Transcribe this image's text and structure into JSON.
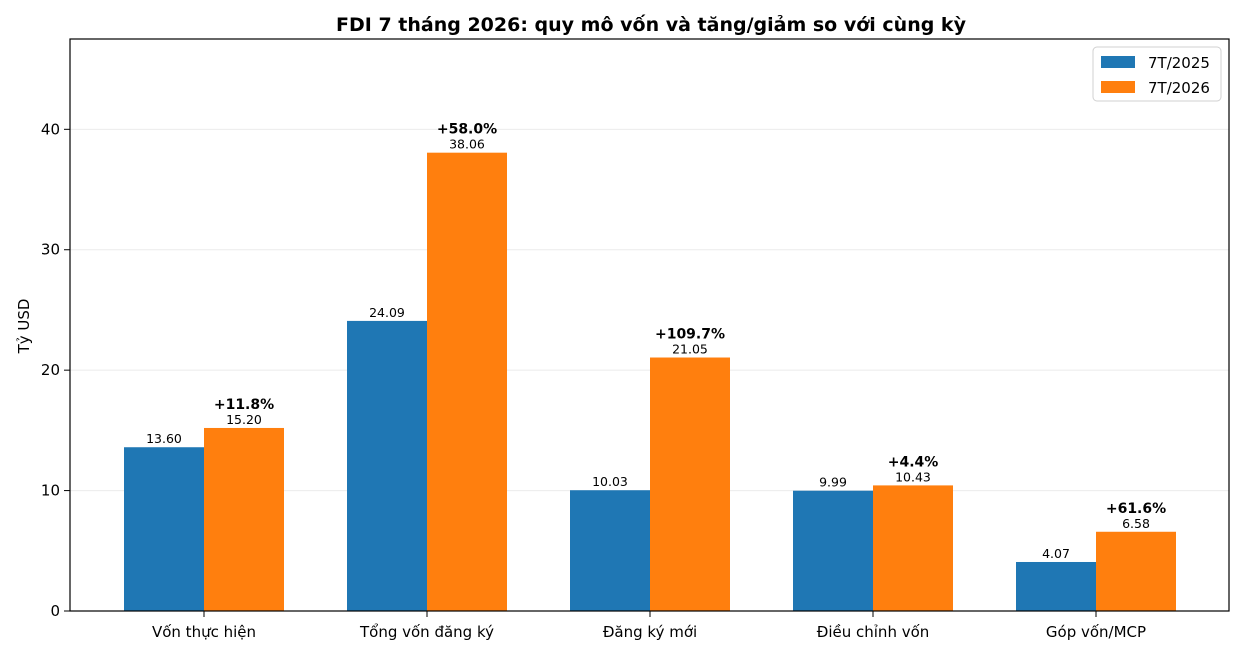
{
  "chart_data": {
    "type": "bar",
    "title": "FDI 7 tháng 2026: quy mô vốn và tăng/giảm so với cùng kỳ",
    "xlabel": "",
    "ylabel": "Tỷ USD",
    "ylim": [
      0,
      47.5
    ],
    "yticks": [
      0,
      10,
      20,
      30,
      40
    ],
    "grid": true,
    "legend_position": "top-right",
    "categories": [
      "Vốn thực hiện",
      "Tổng vốn đăng ký",
      "Đăng ký mới",
      "Điều chỉnh vốn",
      "Góp vốn/MCP"
    ],
    "series": [
      {
        "name": "7T/2025",
        "color": "#1f77b4",
        "values": [
          13.6,
          24.09,
          10.03,
          9.99,
          4.07
        ],
        "labels": [
          "13.60",
          "24.09",
          "10.03",
          "9.99",
          "4.07"
        ]
      },
      {
        "name": "7T/2026",
        "color": "#ff7f0e",
        "values": [
          15.2,
          38.06,
          21.05,
          10.43,
          6.58
        ],
        "labels": [
          "15.20",
          "38.06",
          "21.05",
          "10.43",
          "6.58"
        ]
      }
    ],
    "changes": [
      "+11.8%",
      "+58.0%",
      "+109.7%",
      "+4.4%",
      "+61.6%"
    ]
  }
}
